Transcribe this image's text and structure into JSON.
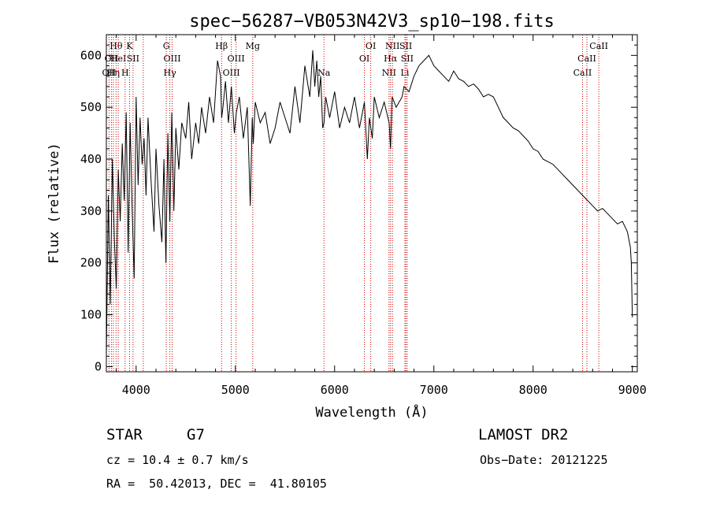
{
  "chart_data": {
    "type": "line",
    "title": "spec−56287−VB053N42V3_sp10−198.fits",
    "xlabel": "Wavelength (Å)",
    "ylabel": "Flux (relative)",
    "xlim": [
      3700,
      9050
    ],
    "ylim": [
      -10,
      640
    ],
    "xticks": [
      4000,
      5000,
      6000,
      7000,
      8000,
      9000
    ],
    "yticks": [
      0,
      100,
      200,
      300,
      400,
      500,
      600
    ],
    "line_color": "#000000",
    "marker_line_color": "#cc0000",
    "series": [
      {
        "x": [
          3700,
          3720,
          3740,
          3760,
          3780,
          3800,
          3820,
          3840,
          3860,
          3880,
          3900,
          3920,
          3940,
          3960,
          3980,
          4000,
          4020,
          4040,
          4060,
          4080,
          4100,
          4120,
          4150,
          4180,
          4200,
          4230,
          4260,
          4280,
          4300,
          4320,
          4340,
          4360,
          4380,
          4400,
          4430,
          4460,
          4500,
          4530,
          4560,
          4600,
          4630,
          4660,
          4700,
          4740,
          4780,
          4820,
          4850,
          4862,
          4875,
          4900,
          4930,
          4960,
          4990,
          5010,
          5040,
          5080,
          5120,
          5150,
          5170,
          5180,
          5200,
          5250,
          5300,
          5350,
          5400,
          5450,
          5500,
          5550,
          5600,
          5650,
          5700,
          5750,
          5780,
          5800,
          5820,
          5840,
          5860,
          5880,
          5893,
          5910,
          5950,
          6000,
          6050,
          6100,
          6150,
          6200,
          6250,
          6300,
          6330,
          6350,
          6380,
          6400,
          6450,
          6500,
          6550,
          6563,
          6580,
          6620,
          6680,
          6700,
          6750,
          6800,
          6850,
          6900,
          6950,
          7000,
          7050,
          7100,
          7150,
          7200,
          7250,
          7300,
          7350,
          7400,
          7450,
          7500,
          7550,
          7600,
          7650,
          7700,
          7750,
          7800,
          7850,
          7900,
          7950,
          8000,
          8050,
          8100,
          8150,
          8200,
          8250,
          8300,
          8350,
          8400,
          8450,
          8500,
          8550,
          8600,
          8650,
          8700,
          8750,
          8800,
          8850,
          8900,
          8950,
          8980,
          8990,
          9000
        ],
        "y": [
          20,
          330,
          120,
          400,
          250,
          150,
          380,
          280,
          430,
          320,
          490,
          220,
          470,
          300,
          170,
          520,
          350,
          480,
          390,
          440,
          330,
          480,
          360,
          260,
          420,
          310,
          240,
          400,
          200,
          450,
          280,
          490,
          300,
          460,
          380,
          470,
          440,
          510,
          400,
          470,
          430,
          500,
          450,
          520,
          470,
          590,
          560,
          480,
          500,
          550,
          470,
          540,
          450,
          490,
          520,
          440,
          500,
          310,
          480,
          430,
          510,
          470,
          490,
          430,
          460,
          510,
          480,
          450,
          540,
          470,
          580,
          520,
          610,
          540,
          590,
          520,
          560,
          460,
          470,
          520,
          480,
          530,
          460,
          500,
          470,
          520,
          460,
          510,
          400,
          480,
          440,
          520,
          480,
          510,
          470,
          420,
          520,
          500,
          520,
          540,
          530,
          560,
          580,
          590,
          600,
          580,
          570,
          560,
          550,
          570,
          555,
          550,
          540,
          545,
          535,
          520,
          525,
          520,
          500,
          480,
          470,
          460,
          455,
          445,
          435,
          420,
          415,
          400,
          395,
          390,
          380,
          370,
          360,
          350,
          340,
          330,
          320,
          310,
          300,
          305,
          295,
          285,
          275,
          280,
          260,
          230,
          200,
          95
        ]
      }
    ],
    "line_labels": [
      {
        "wl": 3727,
        "text": "OII",
        "row": 3,
        "style": "dotted"
      },
      {
        "wl": 3751,
        "text": "OII",
        "row": 2,
        "style": "dotted"
      },
      {
        "wl": 3771,
        "text": "Hη",
        "row": 3,
        "style": "dotted"
      },
      {
        "wl": 3798,
        "text": "Hθ",
        "row": 1,
        "style": "dotted"
      },
      {
        "wl": 3820,
        "text": "HeI",
        "row": 2,
        "style": "dotted"
      },
      {
        "wl": 3889,
        "text": "H",
        "row": 3,
        "style": "dotted"
      },
      {
        "wl": 3934,
        "text": "K",
        "row": 1,
        "style": "dotted"
      },
      {
        "wl": 3969,
        "text": "SII",
        "row": 2,
        "style": "dotted"
      },
      {
        "wl": 4072,
        "text": "",
        "row": 0,
        "style": "dotted"
      },
      {
        "wl": 4304,
        "text": "G",
        "row": 1,
        "style": "dotted"
      },
      {
        "wl": 4340,
        "text": "Hγ",
        "row": 3,
        "style": "dotted"
      },
      {
        "wl": 4363,
        "text": "OIII",
        "row": 2,
        "style": "dotted"
      },
      {
        "wl": 4861,
        "text": "Hβ",
        "row": 1,
        "style": "dotted"
      },
      {
        "wl": 4959,
        "text": "OIII",
        "row": 3,
        "style": "dotted"
      },
      {
        "wl": 5007,
        "text": "OIII",
        "row": 2,
        "style": "dotted"
      },
      {
        "wl": 5175,
        "text": "Mg",
        "row": 1,
        "style": "dotted"
      },
      {
        "wl": 5893,
        "text": "Na",
        "row": 3,
        "style": "dotted"
      },
      {
        "wl": 6300,
        "text": "OI",
        "row": 2,
        "style": "dotted"
      },
      {
        "wl": 6364,
        "text": "OI",
        "row": 1,
        "style": "dotted"
      },
      {
        "wl": 6548,
        "text": "NII",
        "row": 3,
        "style": "dotted"
      },
      {
        "wl": 6563,
        "text": "Hα",
        "row": 2,
        "style": "dotted"
      },
      {
        "wl": 6583,
        "text": "NII",
        "row": 1,
        "style": "dotted"
      },
      {
        "wl": 6708,
        "text": "Li",
        "row": 3,
        "style": "dotted"
      },
      {
        "wl": 6717,
        "text": "SII",
        "row": 1,
        "style": "dotted"
      },
      {
        "wl": 6731,
        "text": "SII",
        "row": 2,
        "style": "dotted"
      },
      {
        "wl": 8498,
        "text": "CaII",
        "row": 3,
        "style": "dotted"
      },
      {
        "wl": 8542,
        "text": "CaII",
        "row": 2,
        "style": "dotted"
      },
      {
        "wl": 8662,
        "text": "CaII",
        "row": 1,
        "style": "dotted"
      }
    ]
  },
  "info": {
    "class": "STAR",
    "subclass": "G7",
    "survey": "LAMOST DR2",
    "cz": "cz = 10.4 ± 0.7 km/s",
    "obs_date": "Obs−Date: 20121225",
    "coords": "RA =  50.42013, DEC =  41.80105"
  }
}
